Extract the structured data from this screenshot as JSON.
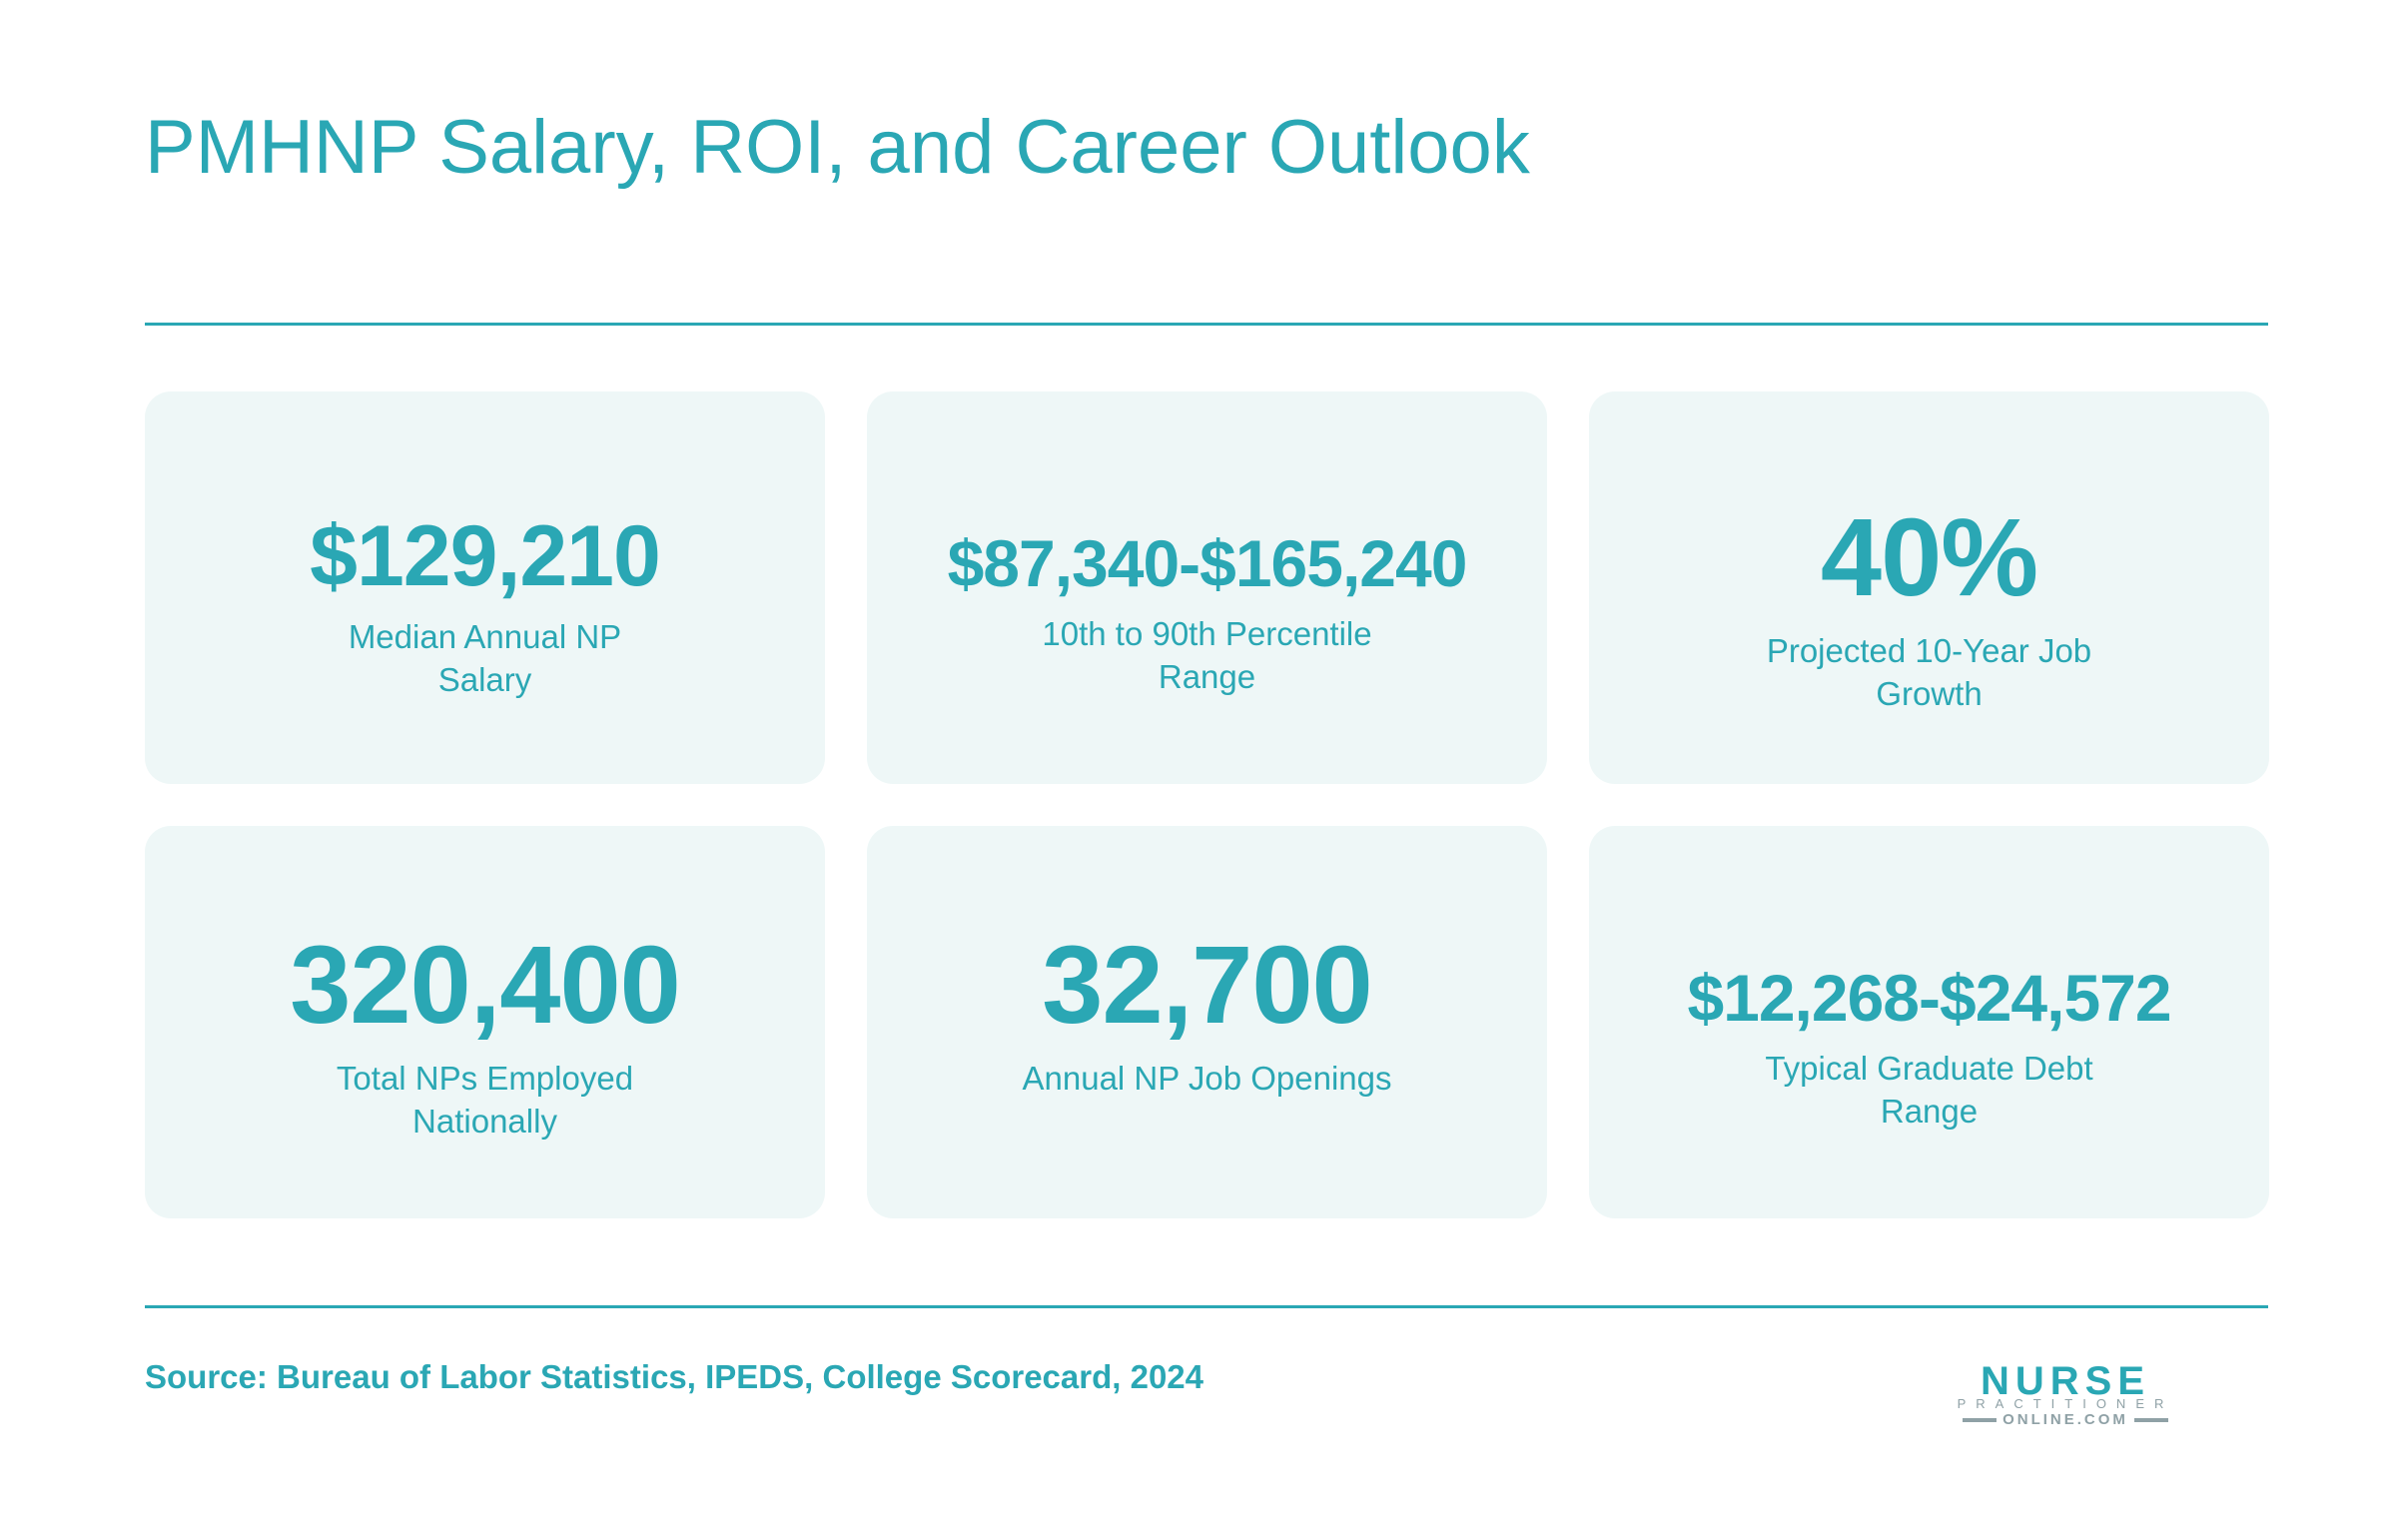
{
  "title": "PMHNP Salary, ROI, and Career Outlook",
  "stats": [
    {
      "value": "$129,210",
      "label": "Median Annual NP Salary"
    },
    {
      "value": "$87,340-$165,240",
      "label": "10th to 90th Percentile Range"
    },
    {
      "value": "40%",
      "label": "Projected 10-Year Job Growth"
    },
    {
      "value": "320,400",
      "label": "Total NPs Employed Nationally"
    },
    {
      "value": "32,700",
      "label": "Annual NP Job Openings"
    },
    {
      "value": "$12,268-$24,572",
      "label": "Typical Graduate Debt Range"
    }
  ],
  "source": "Source: Bureau of Labor Statistics, IPEDS, College Scorecard, 2024",
  "logo": {
    "line1": "NURSE",
    "line2": "PRACTITIONER",
    "line3": "ONLINE.COM"
  },
  "colors": {
    "accent": "#2aa7b4",
    "card_background": "#eef7f7",
    "logo_gray": "#8fa1a6"
  }
}
